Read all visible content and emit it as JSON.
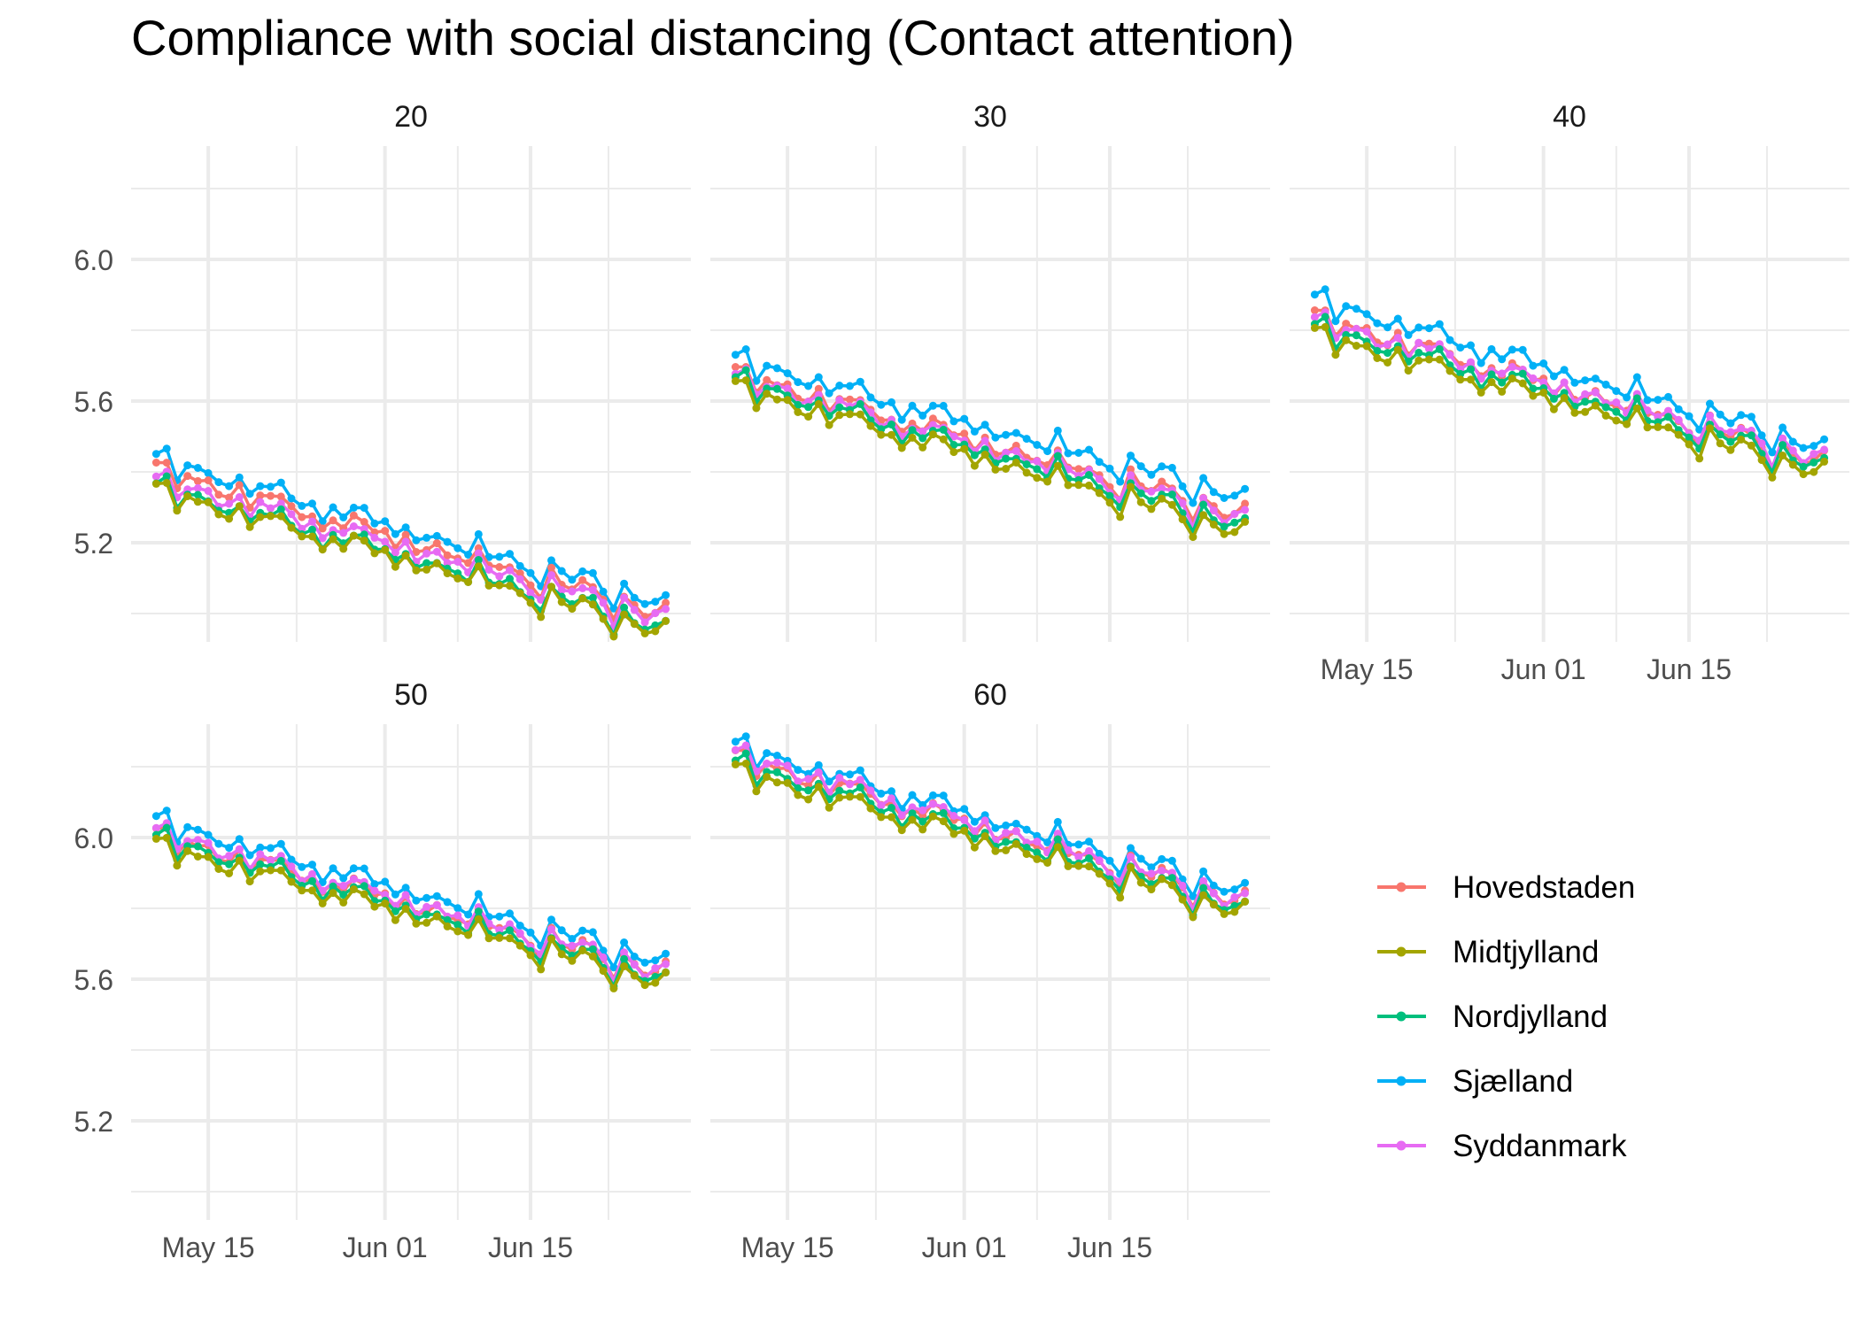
{
  "chart_data": {
    "type": "line",
    "title": "Compliance with social distancing (Contact attention)",
    "xlabel": "",
    "ylabel": "",
    "x_ticks": [
      "May 15",
      "Jun 01",
      "Jun 15"
    ],
    "y_ticks": [
      "5.2",
      "5.6",
      "6.0"
    ],
    "ylim": [
      4.92,
      6.32
    ],
    "grid": true,
    "legend_position": "right",
    "legend": [
      "Hovedstaden",
      "Midtjylland",
      "Nordjylland",
      "Sjælland",
      "Syddanmark"
    ],
    "colors": {
      "Hovedstaden": "#F8766D",
      "Midtjylland": "#A3A500",
      "Nordjylland": "#00BF7D",
      "Sjælland": "#00B0F6",
      "Syddanmark": "#E76BF3"
    },
    "x_start": "May 10",
    "x_end": "Jun 28",
    "point_count": 50,
    "panels": [
      {
        "label": "20",
        "series": [
          {
            "name": "Sjælland",
            "start": 5.44,
            "end": 5.03
          },
          {
            "name": "Hovedstaden",
            "start": 5.41,
            "end": 5.0
          },
          {
            "name": "Syddanmark",
            "start": 5.38,
            "end": 4.99
          },
          {
            "name": "Nordjylland",
            "start": 5.36,
            "end": 4.96
          },
          {
            "name": "Midtjylland",
            "start": 5.35,
            "end": 4.95
          }
        ]
      },
      {
        "label": "30",
        "series": [
          {
            "name": "Sjælland",
            "start": 5.72,
            "end": 5.33
          },
          {
            "name": "Hovedstaden",
            "start": 5.68,
            "end": 5.28
          },
          {
            "name": "Syddanmark",
            "start": 5.67,
            "end": 5.27
          },
          {
            "name": "Nordjylland",
            "start": 5.66,
            "end": 5.25
          },
          {
            "name": "Midtjylland",
            "start": 5.64,
            "end": 5.23
          }
        ]
      },
      {
        "label": "40",
        "series": [
          {
            "name": "Sjælland",
            "start": 5.89,
            "end": 5.47
          },
          {
            "name": "Hovedstaden",
            "start": 5.84,
            "end": 5.43
          },
          {
            "name": "Syddanmark",
            "start": 5.83,
            "end": 5.44
          },
          {
            "name": "Nordjylland",
            "start": 5.81,
            "end": 5.42
          },
          {
            "name": "Midtjylland",
            "start": 5.79,
            "end": 5.4
          }
        ]
      },
      {
        "label": "50",
        "series": [
          {
            "name": "Sjælland",
            "start": 6.05,
            "end": 5.65
          },
          {
            "name": "Hovedstaden",
            "start": 6.01,
            "end": 5.62
          },
          {
            "name": "Syddanmark",
            "start": 6.02,
            "end": 5.62
          },
          {
            "name": "Nordjylland",
            "start": 6.0,
            "end": 5.6
          },
          {
            "name": "Midtjylland",
            "start": 5.98,
            "end": 5.59
          }
        ]
      },
      {
        "label": "60",
        "series": [
          {
            "name": "Sjælland",
            "start": 6.26,
            "end": 5.85
          },
          {
            "name": "Hovedstaden",
            "start": 6.23,
            "end": 5.82
          },
          {
            "name": "Syddanmark",
            "start": 6.24,
            "end": 5.82
          },
          {
            "name": "Nordjylland",
            "start": 6.21,
            "end": 5.8
          },
          {
            "name": "Midtjylland",
            "start": 6.19,
            "end": 5.79
          }
        ]
      }
    ]
  }
}
